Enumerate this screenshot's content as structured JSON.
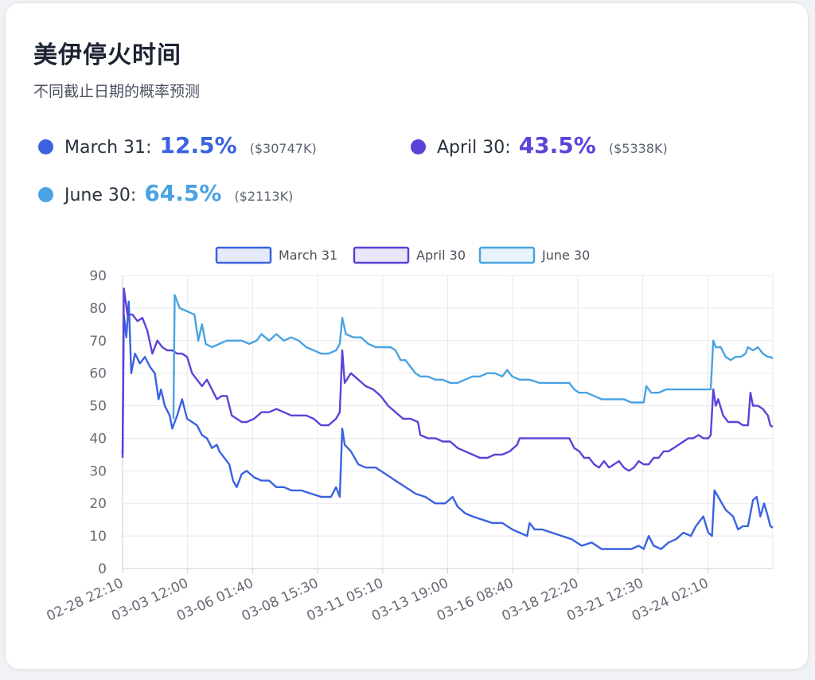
{
  "header": {
    "title": "美伊停火时间",
    "subtitle": "不同截止日期的概率预测"
  },
  "stats": [
    {
      "name": "March 31",
      "colon": ":",
      "pct": "12.5%",
      "volume": "($30747K)",
      "color": "#3b62e0"
    },
    {
      "name": "April 30",
      "colon": ":",
      "pct": "43.5%",
      "volume": "($5338K)",
      "color": "#5a43d8"
    },
    {
      "name": "June 30",
      "colon": ":",
      "pct": "64.5%",
      "volume": "($2113K)",
      "color": "#49a3e2"
    }
  ],
  "chart_data": {
    "type": "line",
    "x_ticks": [
      "02-28 22:10",
      "03-03 12:00",
      "03-06 01:40",
      "03-08 15:30",
      "03-11 05:10",
      "03-13 19:00",
      "03-16 08:40",
      "03-18 22:20",
      "03-21 12:30",
      "03-24 02:10"
    ],
    "y_ticks": [
      "0",
      "10",
      "20",
      "30",
      "40",
      "50",
      "60",
      "70",
      "80",
      "90"
    ],
    "ylim": [
      0,
      90
    ],
    "x_range": [
      0,
      26.2
    ],
    "grid": true,
    "legend_position": "top",
    "series": [
      {
        "name": "March 31",
        "color": "#3b62e0",
        "points": [
          [
            0,
            34
          ],
          [
            0.05,
            78
          ],
          [
            0.15,
            71
          ],
          [
            0.25,
            82
          ],
          [
            0.35,
            60
          ],
          [
            0.5,
            66
          ],
          [
            0.7,
            63
          ],
          [
            0.9,
            65
          ],
          [
            1.1,
            62
          ],
          [
            1.3,
            60
          ],
          [
            1.45,
            52
          ],
          [
            1.55,
            55
          ],
          [
            1.7,
            50
          ],
          [
            1.9,
            47
          ],
          [
            2.0,
            43
          ],
          [
            2.2,
            47
          ],
          [
            2.4,
            52
          ],
          [
            2.6,
            46
          ],
          [
            2.8,
            45
          ],
          [
            3.0,
            44
          ],
          [
            3.2,
            41
          ],
          [
            3.4,
            40
          ],
          [
            3.6,
            37
          ],
          [
            3.8,
            38
          ],
          [
            3.9,
            36
          ],
          [
            4.1,
            34
          ],
          [
            4.3,
            32
          ],
          [
            4.45,
            27
          ],
          [
            4.6,
            25
          ],
          [
            4.8,
            29
          ],
          [
            5.0,
            30
          ],
          [
            5.3,
            28
          ],
          [
            5.6,
            27
          ],
          [
            5.9,
            27
          ],
          [
            6.2,
            25
          ],
          [
            6.5,
            25
          ],
          [
            6.8,
            24
          ],
          [
            7.2,
            24
          ],
          [
            7.6,
            23
          ],
          [
            8.0,
            22
          ],
          [
            8.4,
            22
          ],
          [
            8.6,
            25
          ],
          [
            8.75,
            22
          ],
          [
            8.85,
            43
          ],
          [
            8.95,
            38
          ],
          [
            9.2,
            36
          ],
          [
            9.5,
            32
          ],
          [
            9.8,
            31
          ],
          [
            10.2,
            31
          ],
          [
            10.6,
            29
          ],
          [
            11.0,
            27
          ],
          [
            11.4,
            25
          ],
          [
            11.8,
            23
          ],
          [
            12.2,
            22
          ],
          [
            12.6,
            20
          ],
          [
            13.0,
            20
          ],
          [
            13.3,
            22
          ],
          [
            13.5,
            19
          ],
          [
            13.8,
            17
          ],
          [
            14.1,
            16
          ],
          [
            14.5,
            15
          ],
          [
            14.9,
            14
          ],
          [
            15.3,
            14
          ],
          [
            15.7,
            12
          ],
          [
            16.0,
            11
          ],
          [
            16.3,
            10
          ],
          [
            16.4,
            14
          ],
          [
            16.6,
            12
          ],
          [
            16.9,
            12
          ],
          [
            17.3,
            11
          ],
          [
            17.7,
            10
          ],
          [
            18.1,
            9
          ],
          [
            18.5,
            7
          ],
          [
            18.9,
            8
          ],
          [
            19.3,
            6
          ],
          [
            19.7,
            6
          ],
          [
            20.1,
            6
          ],
          [
            20.5,
            6
          ],
          [
            20.8,
            7
          ],
          [
            21.0,
            6
          ],
          [
            21.2,
            10
          ],
          [
            21.4,
            7
          ],
          [
            21.7,
            6
          ],
          [
            22.0,
            8
          ],
          [
            22.3,
            9
          ],
          [
            22.6,
            11
          ],
          [
            22.9,
            10
          ],
          [
            23.1,
            13
          ],
          [
            23.4,
            16
          ],
          [
            23.6,
            11
          ],
          [
            23.75,
            10
          ],
          [
            23.85,
            24
          ],
          [
            24.0,
            22
          ],
          [
            24.3,
            18
          ],
          [
            24.6,
            16
          ],
          [
            24.8,
            12
          ],
          [
            25.0,
            13
          ],
          [
            25.2,
            13
          ],
          [
            25.4,
            21
          ],
          [
            25.55,
            22
          ],
          [
            25.7,
            16
          ],
          [
            25.85,
            20
          ],
          [
            26.0,
            16
          ],
          [
            26.1,
            13
          ],
          [
            26.2,
            12.5
          ]
        ]
      },
      {
        "name": "April 30",
        "color": "#5a43d8",
        "points": [
          [
            0,
            35
          ],
          [
            0.05,
            86
          ],
          [
            0.2,
            78
          ],
          [
            0.4,
            78
          ],
          [
            0.6,
            76
          ],
          [
            0.8,
            77
          ],
          [
            1.0,
            73
          ],
          [
            1.2,
            66
          ],
          [
            1.4,
            70
          ],
          [
            1.6,
            68
          ],
          [
            1.8,
            67
          ],
          [
            2.0,
            67
          ],
          [
            2.2,
            66
          ],
          [
            2.4,
            66
          ],
          [
            2.6,
            65
          ],
          [
            2.8,
            60
          ],
          [
            3.0,
            58
          ],
          [
            3.2,
            56
          ],
          [
            3.4,
            58
          ],
          [
            3.6,
            55
          ],
          [
            3.8,
            52
          ],
          [
            4.0,
            53
          ],
          [
            4.2,
            53
          ],
          [
            4.4,
            47
          ],
          [
            4.6,
            46
          ],
          [
            4.8,
            45
          ],
          [
            5.0,
            45
          ],
          [
            5.3,
            46
          ],
          [
            5.6,
            48
          ],
          [
            5.9,
            48
          ],
          [
            6.2,
            49
          ],
          [
            6.5,
            48
          ],
          [
            6.8,
            47
          ],
          [
            7.1,
            47
          ],
          [
            7.4,
            47
          ],
          [
            7.7,
            46
          ],
          [
            8.0,
            44
          ],
          [
            8.3,
            44
          ],
          [
            8.6,
            46
          ],
          [
            8.75,
            48
          ],
          [
            8.85,
            67
          ],
          [
            8.95,
            57
          ],
          [
            9.2,
            60
          ],
          [
            9.5,
            58
          ],
          [
            9.8,
            56
          ],
          [
            10.1,
            55
          ],
          [
            10.4,
            53
          ],
          [
            10.7,
            50
          ],
          [
            11.0,
            48
          ],
          [
            11.3,
            46
          ],
          [
            11.6,
            46
          ],
          [
            11.9,
            45
          ],
          [
            12.0,
            41
          ],
          [
            12.3,
            40
          ],
          [
            12.6,
            40
          ],
          [
            12.9,
            39
          ],
          [
            13.2,
            39
          ],
          [
            13.5,
            37
          ],
          [
            13.8,
            36
          ],
          [
            14.1,
            35
          ],
          [
            14.4,
            34
          ],
          [
            14.7,
            34
          ],
          [
            15.0,
            35
          ],
          [
            15.3,
            35
          ],
          [
            15.6,
            36
          ],
          [
            15.9,
            38
          ],
          [
            16.0,
            40
          ],
          [
            16.4,
            40
          ],
          [
            16.8,
            40
          ],
          [
            17.2,
            40
          ],
          [
            17.6,
            40
          ],
          [
            18.0,
            40
          ],
          [
            18.2,
            37
          ],
          [
            18.4,
            36
          ],
          [
            18.6,
            34
          ],
          [
            18.8,
            34
          ],
          [
            19.0,
            32
          ],
          [
            19.2,
            31
          ],
          [
            19.4,
            33
          ],
          [
            19.6,
            31
          ],
          [
            19.8,
            32
          ],
          [
            20.0,
            33
          ],
          [
            20.2,
            31
          ],
          [
            20.4,
            30
          ],
          [
            20.6,
            31
          ],
          [
            20.8,
            33
          ],
          [
            21.0,
            32
          ],
          [
            21.2,
            32
          ],
          [
            21.4,
            34
          ],
          [
            21.6,
            34
          ],
          [
            21.8,
            36
          ],
          [
            22.0,
            36
          ],
          [
            22.2,
            37
          ],
          [
            22.4,
            38
          ],
          [
            22.6,
            39
          ],
          [
            22.8,
            40
          ],
          [
            23.0,
            40
          ],
          [
            23.2,
            41
          ],
          [
            23.4,
            40
          ],
          [
            23.6,
            40
          ],
          [
            23.7,
            41
          ],
          [
            23.8,
            55
          ],
          [
            23.9,
            50
          ],
          [
            24.0,
            52
          ],
          [
            24.2,
            47
          ],
          [
            24.4,
            45
          ],
          [
            24.6,
            45
          ],
          [
            24.8,
            45
          ],
          [
            25.0,
            44
          ],
          [
            25.2,
            44
          ],
          [
            25.3,
            54
          ],
          [
            25.4,
            50
          ],
          [
            25.6,
            50
          ],
          [
            25.8,
            49
          ],
          [
            26.0,
            47
          ],
          [
            26.1,
            44
          ],
          [
            26.2,
            43.5
          ]
        ]
      },
      {
        "name": "June 30",
        "color": "#49a3e2",
        "points": [
          [
            2.05,
            46
          ],
          [
            2.1,
            84
          ],
          [
            2.3,
            80
          ],
          [
            2.6,
            79
          ],
          [
            2.9,
            78
          ],
          [
            3.05,
            70
          ],
          [
            3.2,
            75
          ],
          [
            3.35,
            69
          ],
          [
            3.6,
            68
          ],
          [
            3.9,
            69
          ],
          [
            4.2,
            70
          ],
          [
            4.5,
            70
          ],
          [
            4.8,
            70
          ],
          [
            5.1,
            69
          ],
          [
            5.4,
            70
          ],
          [
            5.6,
            72
          ],
          [
            5.9,
            70
          ],
          [
            6.2,
            72
          ],
          [
            6.5,
            70
          ],
          [
            6.8,
            71
          ],
          [
            7.1,
            70
          ],
          [
            7.4,
            68
          ],
          [
            7.7,
            67
          ],
          [
            8.0,
            66
          ],
          [
            8.3,
            66
          ],
          [
            8.6,
            67
          ],
          [
            8.75,
            69
          ],
          [
            8.85,
            77
          ],
          [
            9.0,
            72
          ],
          [
            9.3,
            71
          ],
          [
            9.6,
            71
          ],
          [
            9.9,
            69
          ],
          [
            10.2,
            68
          ],
          [
            10.5,
            68
          ],
          [
            10.8,
            68
          ],
          [
            11.0,
            67
          ],
          [
            11.2,
            64
          ],
          [
            11.4,
            64
          ],
          [
            11.6,
            62
          ],
          [
            11.8,
            60
          ],
          [
            12.0,
            59
          ],
          [
            12.3,
            59
          ],
          [
            12.6,
            58
          ],
          [
            12.9,
            58
          ],
          [
            13.2,
            57
          ],
          [
            13.5,
            57
          ],
          [
            13.8,
            58
          ],
          [
            14.1,
            59
          ],
          [
            14.4,
            59
          ],
          [
            14.7,
            60
          ],
          [
            15.0,
            60
          ],
          [
            15.3,
            59
          ],
          [
            15.5,
            61
          ],
          [
            15.7,
            59
          ],
          [
            16.0,
            58
          ],
          [
            16.4,
            58
          ],
          [
            16.8,
            57
          ],
          [
            17.2,
            57
          ],
          [
            17.6,
            57
          ],
          [
            18.0,
            57
          ],
          [
            18.2,
            55
          ],
          [
            18.4,
            54
          ],
          [
            18.7,
            54
          ],
          [
            19.0,
            53
          ],
          [
            19.3,
            52
          ],
          [
            19.6,
            52
          ],
          [
            19.9,
            52
          ],
          [
            20.2,
            52
          ],
          [
            20.5,
            51
          ],
          [
            20.8,
            51
          ],
          [
            21.0,
            51
          ],
          [
            21.1,
            56
          ],
          [
            21.3,
            54
          ],
          [
            21.6,
            54
          ],
          [
            21.9,
            55
          ],
          [
            22.2,
            55
          ],
          [
            22.5,
            55
          ],
          [
            22.8,
            55
          ],
          [
            23.1,
            55
          ],
          [
            23.4,
            55
          ],
          [
            23.6,
            55
          ],
          [
            23.7,
            55
          ],
          [
            23.8,
            70
          ],
          [
            23.9,
            68
          ],
          [
            24.1,
            68
          ],
          [
            24.3,
            65
          ],
          [
            24.5,
            64
          ],
          [
            24.7,
            65
          ],
          [
            24.9,
            65
          ],
          [
            25.1,
            66
          ],
          [
            25.2,
            68
          ],
          [
            25.4,
            67
          ],
          [
            25.6,
            68
          ],
          [
            25.8,
            66
          ],
          [
            26.0,
            65
          ],
          [
            26.1,
            65
          ],
          [
            26.2,
            64.5
          ]
        ]
      }
    ]
  }
}
